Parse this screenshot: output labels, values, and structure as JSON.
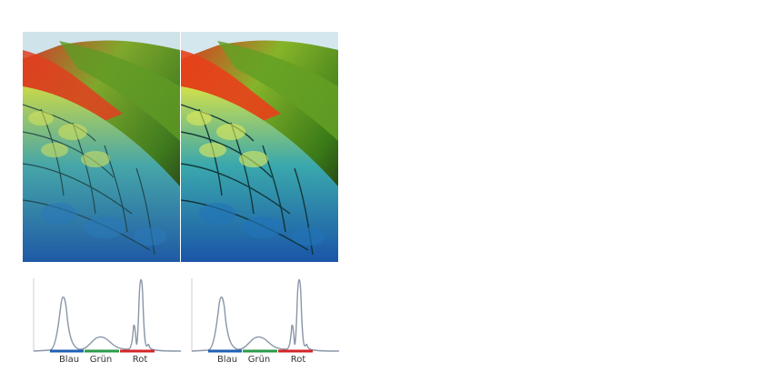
{
  "panels": [
    {
      "id": "left",
      "image": {
        "subject": "macaw-feathers",
        "variant": "original"
      },
      "histogram": {
        "labels": [
          "Blau",
          "Grün",
          "Rot"
        ],
        "channel_colors": {
          "blau": "#1f5fb4",
          "gruen": "#2a9a4a",
          "rot": "#d3242a"
        },
        "curve_color": "#8a97a8"
      }
    },
    {
      "id": "right",
      "image": {
        "subject": "macaw-feathers",
        "variant": "sharpened"
      },
      "histogram": {
        "labels": [
          "Blau",
          "Grün",
          "Rot"
        ],
        "channel_colors": {
          "blau": "#1f5fb4",
          "gruen": "#2a9a4a",
          "rot": "#d3242a"
        },
        "curve_color": "#8a97a8"
      }
    }
  ]
}
